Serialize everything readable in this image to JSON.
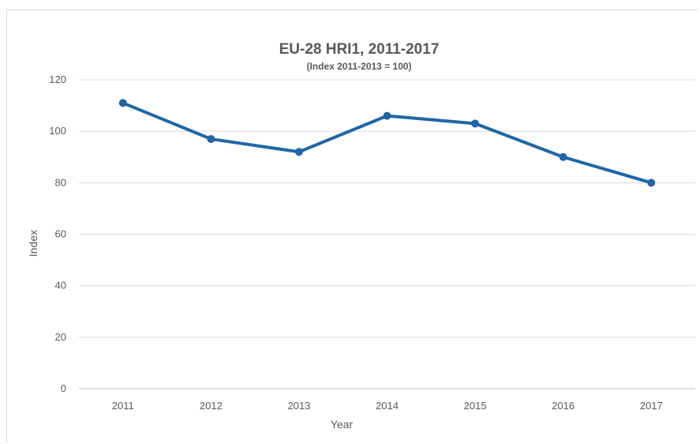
{
  "chart_data": {
    "type": "line",
    "title": "EU-28 HRI1, 2011-2017",
    "subtitle": "(Index 2011-2013 = 100)",
    "xlabel": "Year",
    "ylabel": "Index",
    "categories": [
      "2011",
      "2012",
      "2013",
      "2014",
      "2015",
      "2016",
      "2017"
    ],
    "series": [
      {
        "values": [
          111,
          97,
          92,
          106,
          103,
          90,
          80
        ],
        "color": "#1f66a8"
      }
    ],
    "ylim": [
      0,
      120
    ],
    "yticks": [
      0,
      20,
      40,
      60,
      80,
      100,
      120
    ],
    "grid": true,
    "legend": "none"
  }
}
